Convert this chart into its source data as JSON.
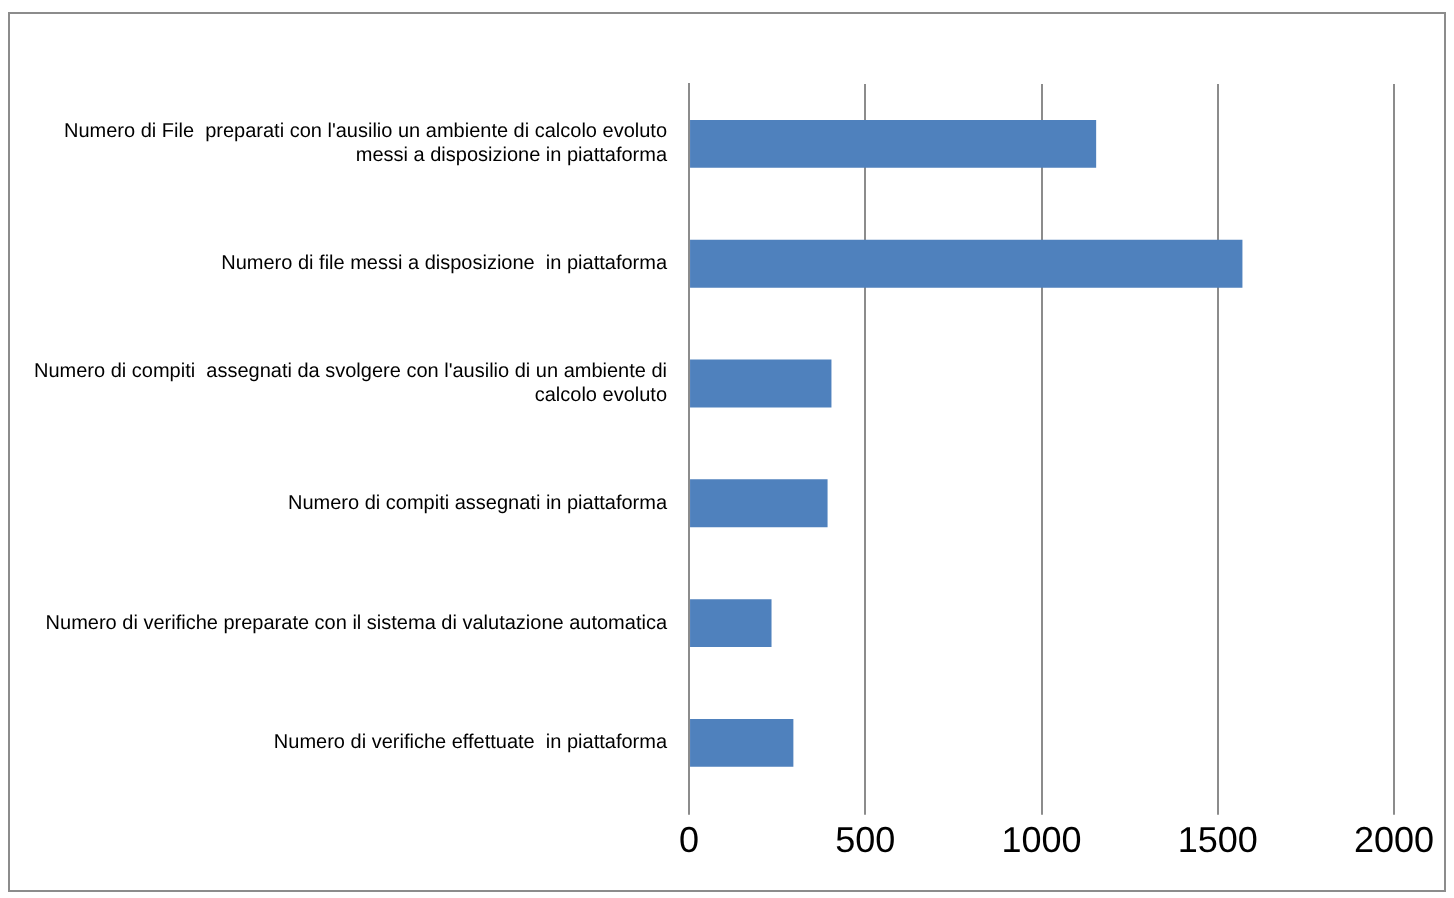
{
  "chart_data": {
    "type": "bar",
    "orientation": "horizontal",
    "categories": [
      "Numero di File  preparati con l'ausilio un ambiente di calcolo evoluto messi a disposizione in piattaforma",
      "Numero di file messi a disposizione  in piattaforma",
      "Numero di compiti  assegnati da svolgere con l'ausilio di un ambiente di calcolo evoluto",
      "Numero di compiti assegnati in piattaforma",
      "Numero di verifiche preparate con il sistema di valutazione automatica",
      "Numero di verifiche effettuate  in piattaforma"
    ],
    "values": [
      1155,
      1570,
      404,
      393,
      234,
      296
    ],
    "color": "#4f81bd",
    "xlim": [
      0,
      2000
    ],
    "xticks": [
      0,
      500,
      1000,
      1500,
      2000
    ],
    "grid": "x",
    "legend": false
  }
}
